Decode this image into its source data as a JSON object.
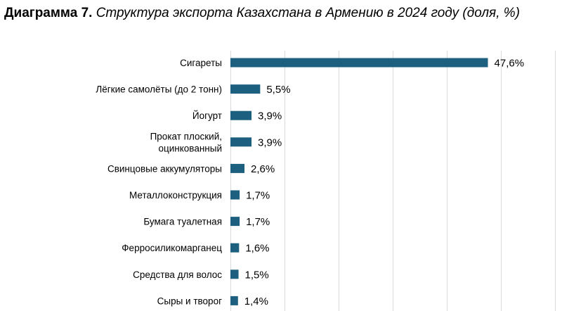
{
  "title": {
    "prefix": "Диаграмма 7.",
    "text": "Структура экспорта Казахстана в Армению в 2024 году (доля, %)"
  },
  "colors": {
    "bar": "#1d5f7f",
    "grid": "#d9d9d9"
  },
  "chart_data": {
    "type": "bar",
    "orientation": "horizontal",
    "title": "Структура экспорта Казахстана в Армению в 2024 году (доля, %)",
    "categories": [
      [
        "Сигареты"
      ],
      [
        "Лёгкие самолёты (до 2 тонн)"
      ],
      [
        "Йогурт"
      ],
      [
        "Прокат плоский,",
        "оцинкованный"
      ],
      [
        "Свинцовые аккумуляторы"
      ],
      [
        "Металлоконструкция"
      ],
      [
        "Бумага туалетная"
      ],
      [
        "Ферросиликомарганец"
      ],
      [
        "Средства для волос"
      ],
      [
        "Сыры и творог"
      ]
    ],
    "values": [
      47.6,
      5.5,
      3.9,
      3.9,
      2.6,
      1.7,
      1.7,
      1.6,
      1.5,
      1.4
    ],
    "value_labels": [
      "47,6%",
      "5,5%",
      "3,9%",
      "3,9%",
      "2,6%",
      "1,7%",
      "1,7%",
      "1,6%",
      "1,5%",
      "1,4%"
    ],
    "xlim": [
      0,
      60
    ],
    "grid": true,
    "xlabel": "",
    "ylabel": ""
  }
}
